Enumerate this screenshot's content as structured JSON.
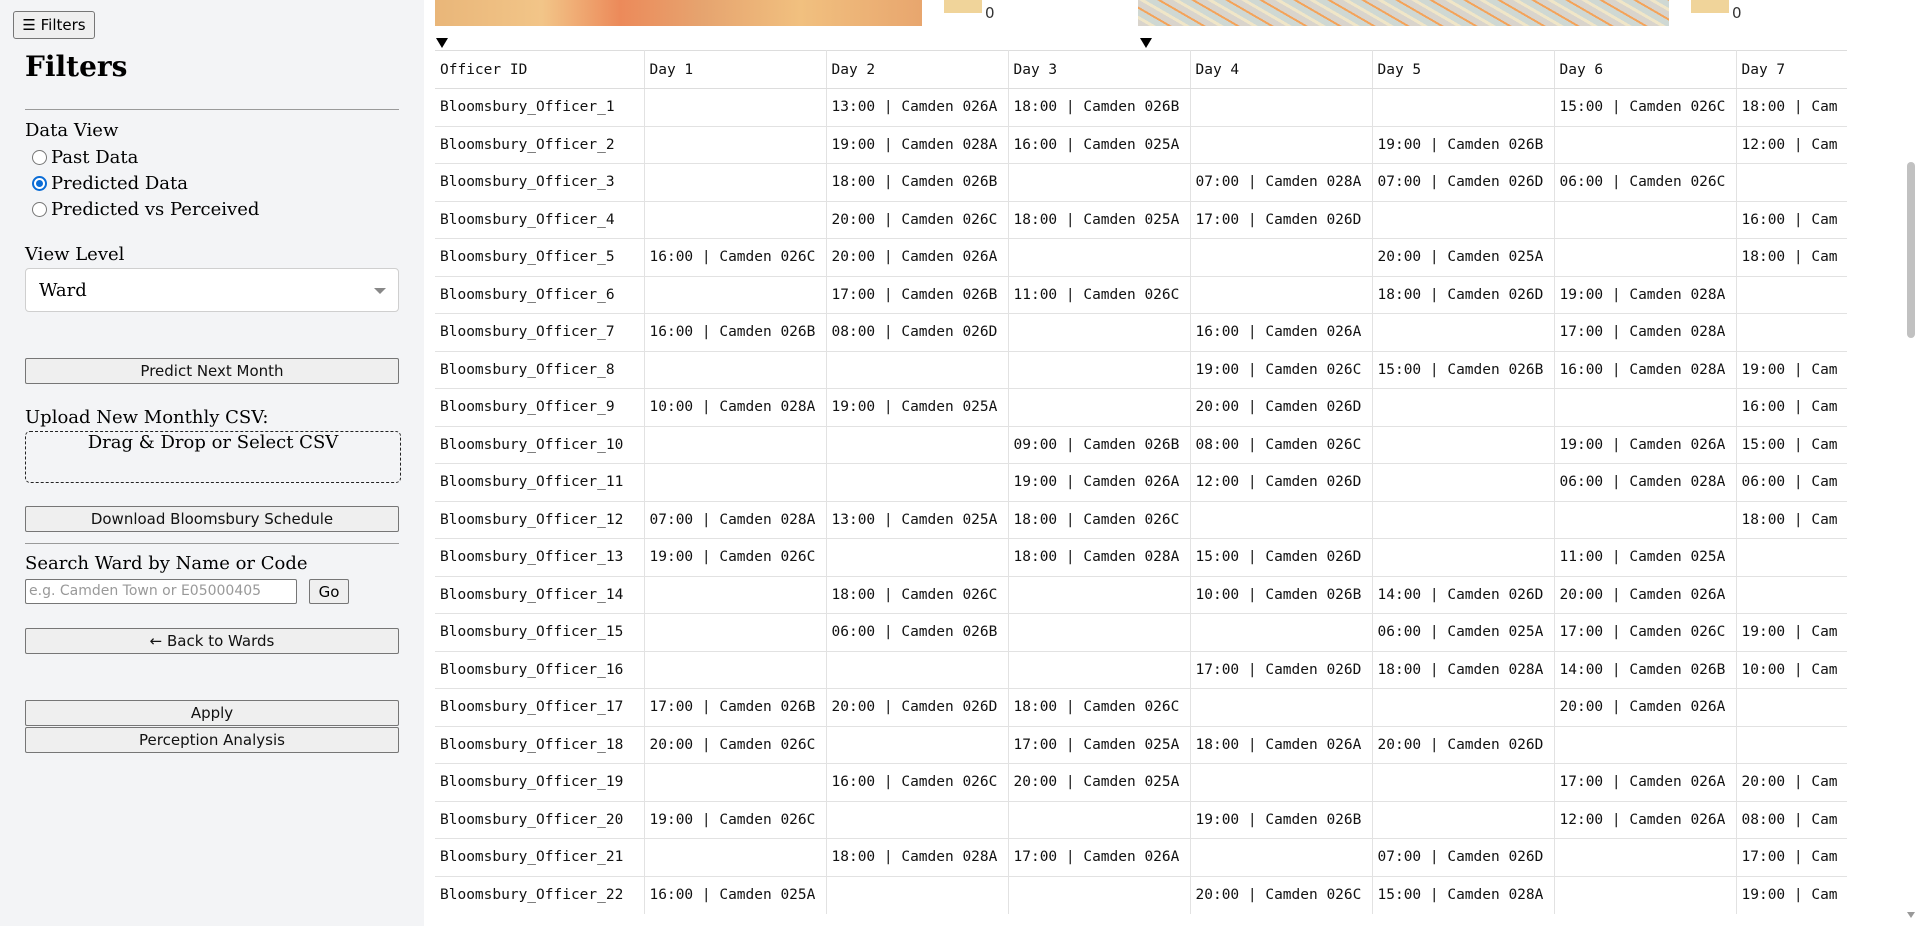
{
  "sidebar": {
    "toggle_label": "☰ Filters",
    "title": "Filters",
    "data_view": {
      "label": "Data View",
      "options": [
        "Past Data",
        "Predicted Data",
        "Predicted vs Perceived"
      ],
      "selected": "Predicted Data"
    },
    "view_level": {
      "label": "View Level",
      "selected": "Ward"
    },
    "predict_label": "Predict Next Month",
    "upload_label": "Upload New Monthly CSV:",
    "dropzone_text": "Drag & Drop or Select CSV",
    "download_label": "Download Bloomsbury Schedule",
    "search": {
      "label": "Search Ward by Name or Code",
      "placeholder": "e.g. Camden Town or E05000405",
      "go_label": "Go"
    },
    "back_label": "← Back to Wards",
    "apply_label": "Apply",
    "perception_label": "Perception Analysis"
  },
  "maps": {
    "legend_min_1": "0",
    "legend_min_2": "0"
  },
  "schedule": {
    "columns": [
      "Officer ID",
      "Day 1",
      "Day 2",
      "Day 3",
      "Day 4",
      "Day 5",
      "Day 6",
      "Day 7"
    ],
    "rows": [
      [
        "Bloomsbury_Officer_1",
        "",
        "13:00 | Camden 026A",
        "18:00 | Camden 026B",
        "",
        "",
        "15:00 | Camden 026C",
        "18:00 | Cam"
      ],
      [
        "Bloomsbury_Officer_2",
        "",
        "19:00 | Camden 028A",
        "16:00 | Camden 025A",
        "",
        "19:00 | Camden 026B",
        "",
        "12:00 | Cam"
      ],
      [
        "Bloomsbury_Officer_3",
        "",
        "18:00 | Camden 026B",
        "",
        "07:00 | Camden 028A",
        "07:00 | Camden 026D",
        "06:00 | Camden 026C",
        ""
      ],
      [
        "Bloomsbury_Officer_4",
        "",
        "20:00 | Camden 026C",
        "18:00 | Camden 025A",
        "17:00 | Camden 026D",
        "",
        "",
        "16:00 | Cam"
      ],
      [
        "Bloomsbury_Officer_5",
        "16:00 | Camden 026C",
        "20:00 | Camden 026A",
        "",
        "",
        "20:00 | Camden 025A",
        "",
        "18:00 | Cam"
      ],
      [
        "Bloomsbury_Officer_6",
        "",
        "17:00 | Camden 026B",
        "11:00 | Camden 026C",
        "",
        "18:00 | Camden 026D",
        "19:00 | Camden 028A",
        ""
      ],
      [
        "Bloomsbury_Officer_7",
        "16:00 | Camden 026B",
        "08:00 | Camden 026D",
        "",
        "16:00 | Camden 026A",
        "",
        "17:00 | Camden 028A",
        ""
      ],
      [
        "Bloomsbury_Officer_8",
        "",
        "",
        "",
        "19:00 | Camden 026C",
        "15:00 | Camden 026B",
        "16:00 | Camden 028A",
        "19:00 | Cam"
      ],
      [
        "Bloomsbury_Officer_9",
        "10:00 | Camden 028A",
        "19:00 | Camden 025A",
        "",
        "20:00 | Camden 026D",
        "",
        "",
        "16:00 | Cam"
      ],
      [
        "Bloomsbury_Officer_10",
        "",
        "",
        "09:00 | Camden 026B",
        "08:00 | Camden 026C",
        "",
        "19:00 | Camden 026A",
        "15:00 | Cam"
      ],
      [
        "Bloomsbury_Officer_11",
        "",
        "",
        "19:00 | Camden 026A",
        "12:00 | Camden 026D",
        "",
        "06:00 | Camden 028A",
        "06:00 | Cam"
      ],
      [
        "Bloomsbury_Officer_12",
        "07:00 | Camden 028A",
        "13:00 | Camden 025A",
        "18:00 | Camden 026C",
        "",
        "",
        "",
        "18:00 | Cam"
      ],
      [
        "Bloomsbury_Officer_13",
        "19:00 | Camden 026C",
        "",
        "18:00 | Camden 028A",
        "15:00 | Camden 026D",
        "",
        "11:00 | Camden 025A",
        ""
      ],
      [
        "Bloomsbury_Officer_14",
        "",
        "18:00 | Camden 026C",
        "",
        "10:00 | Camden 026B",
        "14:00 | Camden 026D",
        "20:00 | Camden 026A",
        ""
      ],
      [
        "Bloomsbury_Officer_15",
        "",
        "06:00 | Camden 026B",
        "",
        "",
        "06:00 | Camden 025A",
        "17:00 | Camden 026C",
        "19:00 | Cam"
      ],
      [
        "Bloomsbury_Officer_16",
        "",
        "",
        "",
        "17:00 | Camden 026D",
        "18:00 | Camden 028A",
        "14:00 | Camden 026B",
        "10:00 | Cam"
      ],
      [
        "Bloomsbury_Officer_17",
        "17:00 | Camden 026B",
        "20:00 | Camden 026D",
        "18:00 | Camden 026C",
        "",
        "",
        "20:00 | Camden 026A",
        ""
      ],
      [
        "Bloomsbury_Officer_18",
        "20:00 | Camden 026C",
        "",
        "17:00 | Camden 025A",
        "18:00 | Camden 026A",
        "20:00 | Camden 026D",
        "",
        ""
      ],
      [
        "Bloomsbury_Officer_19",
        "",
        "16:00 | Camden 026C",
        "20:00 | Camden 025A",
        "",
        "",
        "17:00 | Camden 026A",
        "20:00 | Cam"
      ],
      [
        "Bloomsbury_Officer_20",
        "19:00 | Camden 026C",
        "",
        "",
        "19:00 | Camden 026B",
        "",
        "12:00 | Camden 026A",
        "08:00 | Cam"
      ],
      [
        "Bloomsbury_Officer_21",
        "",
        "18:00 | Camden 028A",
        "17:00 | Camden 026A",
        "",
        "07:00 | Camden 026D",
        "",
        "17:00 | Cam"
      ],
      [
        "Bloomsbury_Officer_22",
        "16:00 | Camden 025A",
        "",
        "",
        "20:00 | Camden 026C",
        "15:00 | Camden 028A",
        "",
        "19:00 | Cam"
      ]
    ]
  }
}
